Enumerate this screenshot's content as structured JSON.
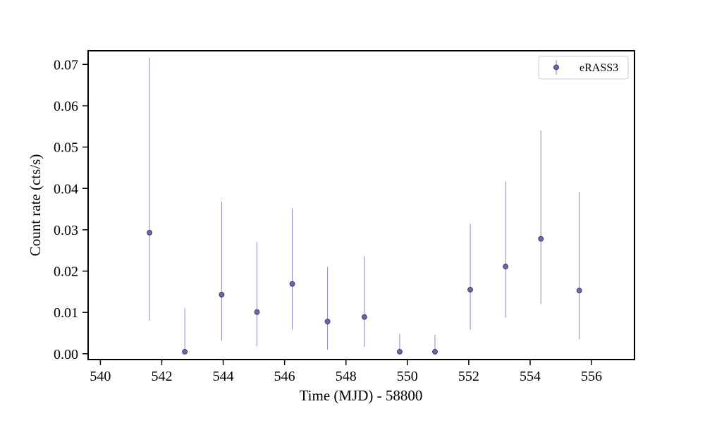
{
  "chart_data": {
    "type": "scatter",
    "xlabel": "Time (MJD) - 58800",
    "ylabel": "Count rate (cts/s)",
    "xlim": [
      539.6,
      557.4
    ],
    "ylim": [
      -0.0014,
      0.0733
    ],
    "xticks": [
      540,
      542,
      544,
      546,
      548,
      550,
      552,
      554,
      556
    ],
    "xtick_labels": [
      "540",
      "542",
      "544",
      "546",
      "548",
      "550",
      "552",
      "554",
      "556"
    ],
    "yticks": [
      0.0,
      0.01,
      0.02,
      0.03,
      0.04,
      0.05,
      0.06,
      0.07
    ],
    "ytick_labels": [
      "0.00",
      "0.01",
      "0.02",
      "0.03",
      "0.04",
      "0.05",
      "0.06",
      "0.07"
    ],
    "grid": false,
    "legend_position": "top-right",
    "series": [
      {
        "name": "eRASS3",
        "marker_color": "#6a67a8",
        "marker_edge": "#2b2956",
        "errorbar_color": "#8a87c0",
        "x": [
          541.6,
          542.75,
          543.95,
          545.1,
          546.25,
          547.4,
          548.6,
          549.75,
          550.9,
          552.05,
          553.2,
          554.35,
          555.6
        ],
        "y": [
          0.0293,
          0.0005,
          0.0143,
          0.0101,
          0.0169,
          0.0078,
          0.0089,
          0.0005,
          0.0005,
          0.0155,
          0.0211,
          0.0278,
          0.0153
        ],
        "y_low": [
          0.008,
          0.0,
          0.0032,
          0.0018,
          0.0058,
          0.001,
          0.0016,
          0.0,
          0.0,
          0.0058,
          0.0087,
          0.012,
          0.0035
        ],
        "y_high": [
          0.0716,
          0.011,
          0.0368,
          0.027,
          0.0352,
          0.021,
          0.0236,
          0.0048,
          0.0046,
          0.0314,
          0.0418,
          0.054,
          0.0392
        ]
      }
    ]
  }
}
